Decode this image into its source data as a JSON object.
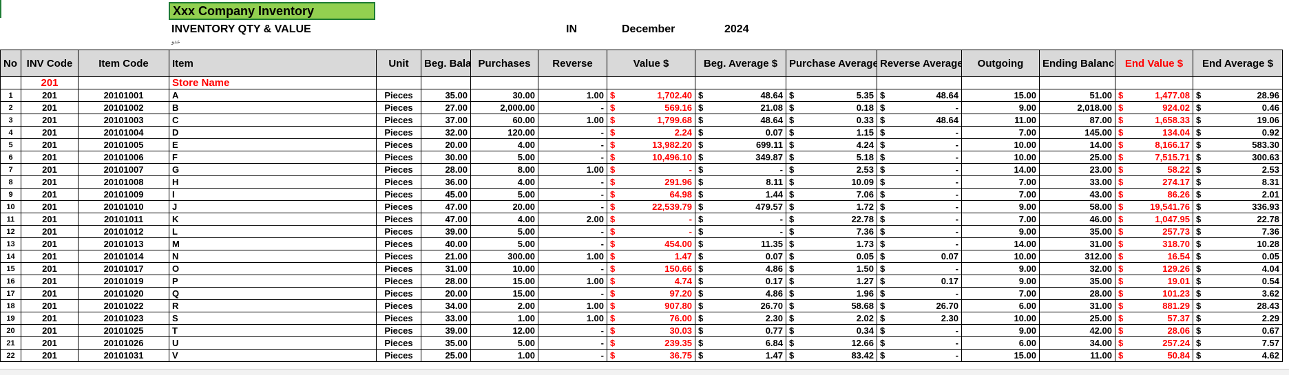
{
  "sheet": {
    "company_title": "Xxx Company Inventory",
    "subtitle": "INVENTORY QTY & VALUE",
    "in_label": "IN",
    "month": "December",
    "year": "2024",
    "tiny_note": "عدو"
  },
  "columns": [
    "No .",
    "INV Code",
    "Item Code",
    "Item",
    "Unit",
    "Beg. Balance",
    "Purchases",
    "Reverse",
    "Value $",
    "Beg. Average $",
    "Purchase Average $",
    "Reverse Average $",
    "Outgoing",
    "Ending Balance",
    "End Value $",
    "End Average $"
  ],
  "store_row": {
    "inv_code": "201",
    "label": "Store Name"
  },
  "currency_symbol": "$",
  "rows": [
    {
      "no": "1",
      "inv": "201",
      "code": "20101001",
      "item": "A",
      "unit": "Pieces",
      "beg": "35.00",
      "pur": "30.00",
      "rev": "1.00",
      "val": "1,702.40",
      "begavg": "48.64",
      "puravg": "5.35",
      "revavg": "48.64",
      "out": "15.00",
      "end": "51.00",
      "endval": "1,477.08",
      "endavg": "28.96"
    },
    {
      "no": "2",
      "inv": "201",
      "code": "20101002",
      "item": "B",
      "unit": "Pieces",
      "beg": "27.00",
      "pur": "2,000.00",
      "rev": "-",
      "val": "569.16",
      "begavg": "21.08",
      "puravg": "0.18",
      "revavg": "-",
      "out": "9.00",
      "end": "2,018.00",
      "endval": "924.02",
      "endavg": "0.46"
    },
    {
      "no": "3",
      "inv": "201",
      "code": "20101003",
      "item": "C",
      "unit": "Pieces",
      "beg": "37.00",
      "pur": "60.00",
      "rev": "1.00",
      "val": "1,799.68",
      "begavg": "48.64",
      "puravg": "0.33",
      "revavg": "48.64",
      "out": "11.00",
      "end": "87.00",
      "endval": "1,658.33",
      "endavg": "19.06"
    },
    {
      "no": "4",
      "inv": "201",
      "code": "20101004",
      "item": "D",
      "unit": "Pieces",
      "beg": "32.00",
      "pur": "120.00",
      "rev": "-",
      "val": "2.24",
      "begavg": "0.07",
      "puravg": "1.15",
      "revavg": "-",
      "out": "7.00",
      "end": "145.00",
      "endval": "134.04",
      "endavg": "0.92"
    },
    {
      "no": "5",
      "inv": "201",
      "code": "20101005",
      "item": "E",
      "unit": "Pieces",
      "beg": "20.00",
      "pur": "4.00",
      "rev": "-",
      "val": "13,982.20",
      "begavg": "699.11",
      "puravg": "4.24",
      "revavg": "-",
      "out": "10.00",
      "end": "14.00",
      "endval": "8,166.17",
      "endavg": "583.30"
    },
    {
      "no": "6",
      "inv": "201",
      "code": "20101006",
      "item": "F",
      "unit": "Pieces",
      "beg": "30.00",
      "pur": "5.00",
      "rev": "-",
      "val": "10,496.10",
      "begavg": "349.87",
      "puravg": "5.18",
      "revavg": "-",
      "out": "10.00",
      "end": "25.00",
      "endval": "7,515.71",
      "endavg": "300.63"
    },
    {
      "no": "7",
      "inv": "201",
      "code": "20101007",
      "item": "G",
      "unit": "Pieces",
      "beg": "28.00",
      "pur": "8.00",
      "rev": "1.00",
      "val": "-",
      "begavg": "-",
      "puravg": "2.53",
      "revavg": "-",
      "out": "14.00",
      "end": "23.00",
      "endval": "58.22",
      "endavg": "2.53"
    },
    {
      "no": "8",
      "inv": "201",
      "code": "20101008",
      "item": "H",
      "unit": "Pieces",
      "beg": "36.00",
      "pur": "4.00",
      "rev": "-",
      "val": "291.96",
      "begavg": "8.11",
      "puravg": "10.09",
      "revavg": "-",
      "out": "7.00",
      "end": "33.00",
      "endval": "274.17",
      "endavg": "8.31"
    },
    {
      "no": "9",
      "inv": "201",
      "code": "20101009",
      "item": "I",
      "unit": "Pieces",
      "beg": "45.00",
      "pur": "5.00",
      "rev": "-",
      "val": "64.98",
      "begavg": "1.44",
      "puravg": "7.06",
      "revavg": "-",
      "out": "7.00",
      "end": "43.00",
      "endval": "86.26",
      "endavg": "2.01"
    },
    {
      "no": "10",
      "inv": "201",
      "code": "20101010",
      "item": "J",
      "unit": "Pieces",
      "beg": "47.00",
      "pur": "20.00",
      "rev": "-",
      "val": "22,539.79",
      "begavg": "479.57",
      "puravg": "1.72",
      "revavg": "-",
      "out": "9.00",
      "end": "58.00",
      "endval": "19,541.76",
      "endavg": "336.93"
    },
    {
      "no": "11",
      "inv": "201",
      "code": "20101011",
      "item": "K",
      "unit": "Pieces",
      "beg": "47.00",
      "pur": "4.00",
      "rev": "2.00",
      "val": "-",
      "begavg": "-",
      "puravg": "22.78",
      "revavg": "-",
      "out": "7.00",
      "end": "46.00",
      "endval": "1,047.95",
      "endavg": "22.78"
    },
    {
      "no": "12",
      "inv": "201",
      "code": "20101012",
      "item": "L",
      "unit": "Pieces",
      "beg": "39.00",
      "pur": "5.00",
      "rev": "-",
      "val": "-",
      "begavg": "-",
      "puravg": "7.36",
      "revavg": "-",
      "out": "9.00",
      "end": "35.00",
      "endval": "257.73",
      "endavg": "7.36"
    },
    {
      "no": "13",
      "inv": "201",
      "code": "20101013",
      "item": "M",
      "unit": "Pieces",
      "beg": "40.00",
      "pur": "5.00",
      "rev": "-",
      "val": "454.00",
      "begavg": "11.35",
      "puravg": "1.73",
      "revavg": "-",
      "out": "14.00",
      "end": "31.00",
      "endval": "318.70",
      "endavg": "10.28"
    },
    {
      "no": "14",
      "inv": "201",
      "code": "20101014",
      "item": "N",
      "unit": "Pieces",
      "beg": "21.00",
      "pur": "300.00",
      "rev": "1.00",
      "val": "1.47",
      "begavg": "0.07",
      "puravg": "0.05",
      "revavg": "0.07",
      "out": "10.00",
      "end": "312.00",
      "endval": "16.54",
      "endavg": "0.05"
    },
    {
      "no": "15",
      "inv": "201",
      "code": "20101017",
      "item": "O",
      "unit": "Pieces",
      "beg": "31.00",
      "pur": "10.00",
      "rev": "-",
      "val": "150.66",
      "begavg": "4.86",
      "puravg": "1.50",
      "revavg": "-",
      "out": "9.00",
      "end": "32.00",
      "endval": "129.26",
      "endavg": "4.04"
    },
    {
      "no": "16",
      "inv": "201",
      "code": "20101019",
      "item": "P",
      "unit": "Pieces",
      "beg": "28.00",
      "pur": "15.00",
      "rev": "1.00",
      "val": "4.74",
      "begavg": "0.17",
      "puravg": "1.27",
      "revavg": "0.17",
      "out": "9.00",
      "end": "35.00",
      "endval": "19.01",
      "endavg": "0.54"
    },
    {
      "no": "17",
      "inv": "201",
      "code": "20101020",
      "item": "Q",
      "unit": "Pieces",
      "beg": "20.00",
      "pur": "15.00",
      "rev": "-",
      "val": "97.20",
      "begavg": "4.86",
      "puravg": "1.96",
      "revavg": "-",
      "out": "7.00",
      "end": "28.00",
      "endval": "101.23",
      "endavg": "3.62"
    },
    {
      "no": "18",
      "inv": "201",
      "code": "20101022",
      "item": "R",
      "unit": "Pieces",
      "beg": "34.00",
      "pur": "2.00",
      "rev": "1.00",
      "val": "907.80",
      "begavg": "26.70",
      "puravg": "58.68",
      "revavg": "26.70",
      "out": "6.00",
      "end": "31.00",
      "endval": "881.29",
      "endavg": "28.43"
    },
    {
      "no": "19",
      "inv": "201",
      "code": "20101023",
      "item": "S",
      "unit": "Pieces",
      "beg": "33.00",
      "pur": "1.00",
      "rev": "1.00",
      "val": "76.00",
      "begavg": "2.30",
      "puravg": "2.02",
      "revavg": "2.30",
      "out": "10.00",
      "end": "25.00",
      "endval": "57.37",
      "endavg": "2.29"
    },
    {
      "no": "20",
      "inv": "201",
      "code": "20101025",
      "item": "T",
      "unit": "Pieces",
      "beg": "39.00",
      "pur": "12.00",
      "rev": "-",
      "val": "30.03",
      "begavg": "0.77",
      "puravg": "0.34",
      "revavg": "-",
      "out": "9.00",
      "end": "42.00",
      "endval": "28.06",
      "endavg": "0.67"
    },
    {
      "no": "21",
      "inv": "201",
      "code": "20101026",
      "item": "U",
      "unit": "Pieces",
      "beg": "35.00",
      "pur": "5.00",
      "rev": "-",
      "val": "239.35",
      "begavg": "6.84",
      "puravg": "12.66",
      "revavg": "-",
      "out": "6.00",
      "end": "34.00",
      "endval": "257.24",
      "endavg": "7.57"
    },
    {
      "no": "22",
      "inv": "201",
      "code": "20101031",
      "item": "V",
      "unit": "Pieces",
      "beg": "25.00",
      "pur": "1.00",
      "rev": "-",
      "val": "36.75",
      "begavg": "1.47",
      "puravg": "83.42",
      "revavg": "-",
      "out": "15.00",
      "end": "11.00",
      "endval": "50.84",
      "endavg": "4.62"
    }
  ]
}
